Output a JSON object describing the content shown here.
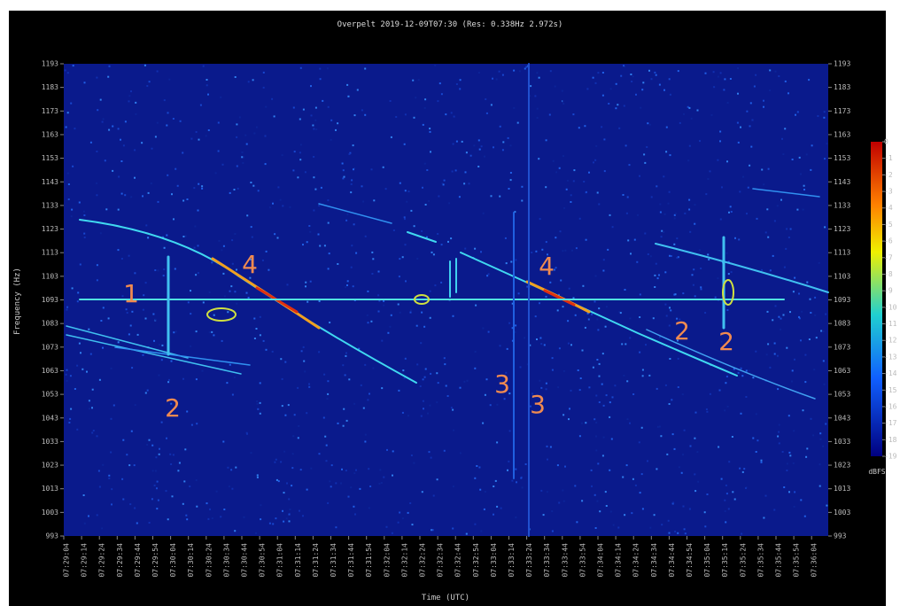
{
  "chart_data": {
    "type": "spectrogram",
    "title": "Overpelt 2019-12-09T07:30 (Res: 0.338Hz 2.972s)",
    "ylabel": "Frequency (Hz)",
    "xlabel": "Time (UTC)",
    "categories": [
      "07:29:04",
      "07:29:14",
      "07:29:24",
      "07:29:34",
      "07:29:44",
      "07:29:54",
      "07:30:04",
      "07:30:14",
      "07:30:24",
      "07:30:34",
      "07:30:44",
      "07:30:54",
      "07:31:04",
      "07:31:14",
      "07:31:24",
      "07:31:34",
      "07:31:44",
      "07:31:54",
      "07:32:04",
      "07:32:14",
      "07:32:24",
      "07:32:34",
      "07:32:44",
      "07:32:54",
      "07:33:04",
      "07:33:14",
      "07:33:24",
      "07:33:34",
      "07:33:44",
      "07:33:54",
      "07:34:04",
      "07:34:14",
      "07:34:24",
      "07:34:34",
      "07:34:44",
      "07:34:54",
      "07:35:04",
      "07:35:14",
      "07:35:24",
      "07:35:34",
      "07:35:44",
      "07:35:54",
      "07:36:04"
    ],
    "ylim": [
      993,
      1193
    ],
    "yticks": [
      993,
      1003,
      1013,
      1023,
      1033,
      1043,
      1053,
      1063,
      1073,
      1083,
      1093,
      1103,
      1113,
      1123,
      1133,
      1143,
      1153,
      1163,
      1173,
      1183,
      1193
    ],
    "colorbar": {
      "label": "dBFS",
      "lim": [
        -19,
        0
      ],
      "ticks": [
        0,
        -1,
        -2,
        -3,
        -4,
        -5,
        -6,
        -7,
        -8,
        -9,
        -10,
        -11,
        -12,
        -13,
        -14,
        -15,
        -16,
        -17,
        -18,
        -19
      ]
    },
    "annotations": [
      "1",
      "4",
      "2",
      "3",
      "3",
      "4",
      "2",
      "2"
    ]
  }
}
